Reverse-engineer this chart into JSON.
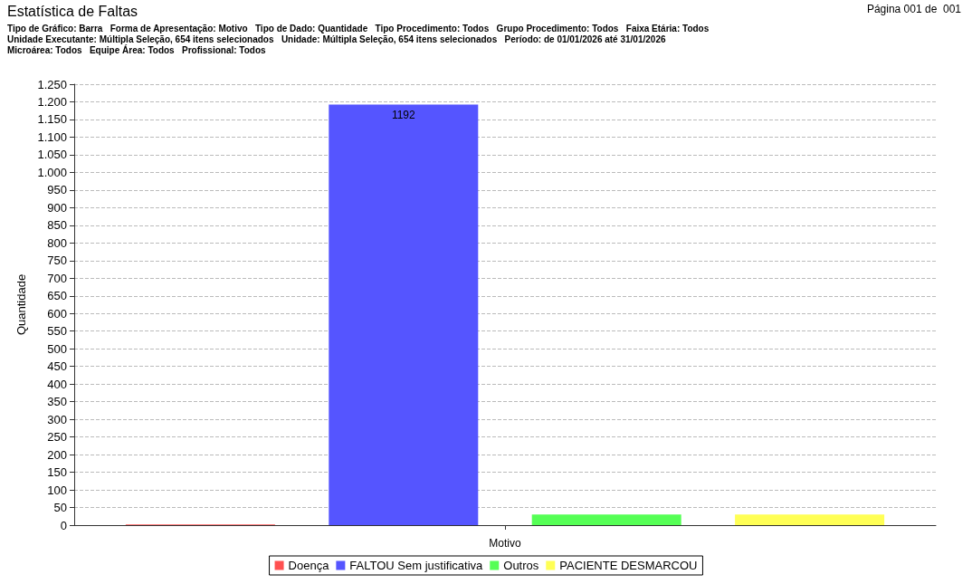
{
  "chart_data": {
    "type": "bar",
    "title": "Estatística de Faltas",
    "annotations": [
      "Página 001 de  001",
      "Tipo de Gráfico: Barra   Forma de Apresentação: Motivo   Tipo de Dado: Quantidade   Tipo Procedimento: Todos   Grupo Procedimento: Todos   Faixa Etária: Todos",
      "Unidade Executante: Múltipla Seleção, 654 itens selecionados   Unidade: Múltipla Seleção, 654 itens selecionados   Período: de 01/01/2026 até 31/01/2026",
      "Microárea: Todos   Equipe Área: Todos   Profissional: Todos"
    ],
    "xlabel": "Motivo",
    "ylabel": "Quantidade",
    "categories": [
      null
    ],
    "series": [
      {
        "name": "Doença",
        "color": "#ff5050",
        "values": [
          2
        ],
        "value_labels": [
          null
        ]
      },
      {
        "name": "FALTOU Sem justificativa",
        "color": "#5555ff",
        "values": [
          1192
        ],
        "value_labels": [
          "1192"
        ]
      },
      {
        "name": "Outros",
        "color": "#55ff55",
        "values": [
          30
        ],
        "value_labels": [
          null
        ]
      },
      {
        "name": "PACIENTE DESMARCOU",
        "color": "#ffff55",
        "values": [
          30
        ],
        "value_labels": [
          null
        ]
      }
    ],
    "ylim": [
      0,
      1250
    ],
    "yticks": [
      0,
      50,
      100,
      150,
      200,
      250,
      300,
      350,
      400,
      450,
      500,
      550,
      600,
      650,
      700,
      750,
      800,
      850,
      900,
      950,
      {
        "value": 1000,
        "label": "1.000"
      },
      {
        "value": 1050,
        "label": "1.050"
      },
      {
        "value": 1100,
        "label": "1.100"
      },
      {
        "value": 1150,
        "label": "1.150"
      },
      {
        "value": 1200,
        "label": "1.200"
      },
      {
        "value": 1250,
        "label": "1.250"
      }
    ],
    "grid": "y",
    "legend": "bottom"
  }
}
